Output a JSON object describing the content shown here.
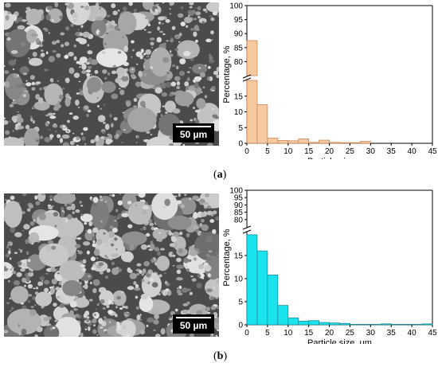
{
  "panels": [
    {
      "label_open": "(",
      "label_letter": "a",
      "label_close": ")",
      "scale_bar": "50 µm",
      "chart_data": {
        "type": "bar",
        "title": "",
        "xlabel": "Particle size, µm",
        "ylabel": "Percentage, %",
        "bin_width": 2.5,
        "x": [
          1.25,
          3.75,
          6.25,
          8.75,
          11.25,
          13.75,
          16.25,
          18.75,
          21.25,
          23.75,
          26.25,
          28.75
        ],
        "values": [
          87.5,
          12.3,
          1.7,
          0.9,
          0.8,
          1.4,
          0.3,
          1.0,
          0.3,
          0.2,
          0.2,
          0.6
        ],
        "xlim": [
          0,
          45
        ],
        "x_ticks": [
          0,
          5,
          10,
          15,
          20,
          25,
          30,
          35,
          40,
          45
        ],
        "y_break": [
          20,
          75
        ],
        "ylim_lower": [
          0,
          20
        ],
        "ylim_upper": [
          75,
          100
        ],
        "y_ticks_lower": [
          0,
          5,
          10,
          15
        ],
        "y_ticks_upper": [
          80,
          85,
          90,
          95,
          100
        ],
        "bar_color": "#f7c9a0",
        "bar_edge": "#c9875a"
      }
    },
    {
      "label_open": "(",
      "label_letter": "b",
      "label_close": ")",
      "scale_bar": "50 µm",
      "chart_data": {
        "type": "bar",
        "title": "",
        "xlabel": "Particle size, µm",
        "ylabel": "Percentage, %",
        "bin_width": 2.5,
        "x": [
          1.25,
          3.75,
          6.25,
          8.75,
          11.25,
          13.75,
          16.25,
          18.75,
          21.25,
          23.75,
          26.25,
          28.75,
          31.25,
          33.75,
          36.25,
          38.75,
          41.25,
          43.75
        ],
        "values": [
          19.5,
          16.0,
          10.8,
          4.2,
          1.5,
          0.8,
          0.9,
          0.5,
          0.4,
          0.3,
          0.1,
          0.1,
          0.1,
          0.2,
          0.1,
          0.1,
          0.1,
          0.2
        ],
        "xlim": [
          0,
          45
        ],
        "x_ticks": [
          0,
          5,
          10,
          15,
          20,
          25,
          30,
          35,
          40,
          45
        ],
        "y_break": [
          20,
          75
        ],
        "ylim_lower": [
          0,
          20
        ],
        "ylim_upper": [
          75,
          100
        ],
        "y_ticks_lower": [
          0,
          5,
          10,
          15
        ],
        "y_ticks_upper": [
          80,
          85,
          90,
          95,
          100
        ],
        "bar_color": "#19e3ee",
        "bar_edge": "#1c8a96"
      }
    }
  ]
}
